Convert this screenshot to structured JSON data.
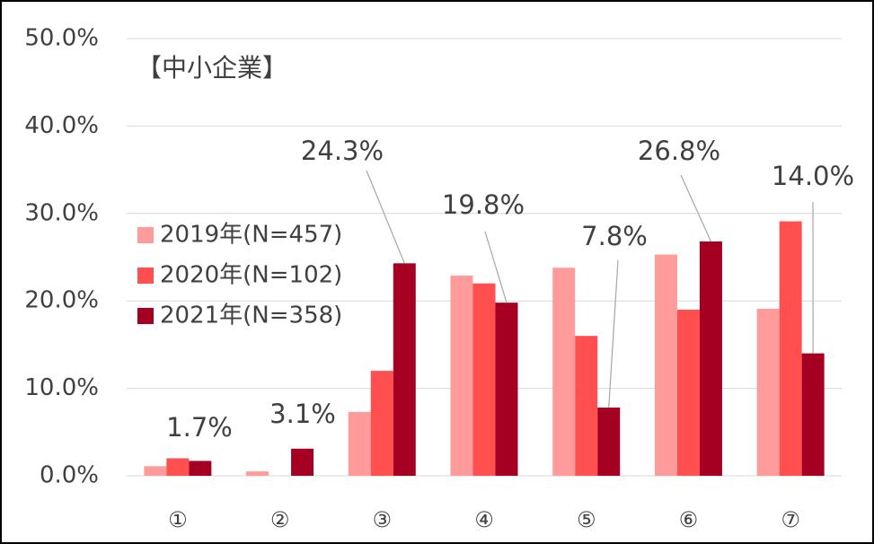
{
  "chart_data": {
    "type": "bar",
    "title": "【中小企業】",
    "categories": [
      "①",
      "②",
      "③",
      "④",
      "⑤",
      "⑥",
      "⑦"
    ],
    "series": [
      {
        "name": "2019年(N=457)",
        "color": "#ff9b9b",
        "values": [
          1.1,
          0.5,
          7.3,
          22.9,
          23.8,
          25.3,
          19.1
        ]
      },
      {
        "name": "2020年(N=102)",
        "color": "#ff4f4f",
        "values": [
          2.0,
          0,
          12.0,
          22.0,
          16.0,
          19.0,
          29.1
        ]
      },
      {
        "name": "2021年(N=358)",
        "color": "#a50021",
        "values": [
          1.7,
          3.1,
          24.3,
          19.8,
          7.8,
          26.8,
          14.0
        ],
        "value_labels": [
          "1.7%",
          "3.1%",
          "24.3%",
          "19.8%",
          "7.8%",
          "26.8%",
          "14.0%"
        ]
      }
    ],
    "ylim": [
      0,
      50
    ],
    "yticks": [
      {
        "value": 0,
        "label": "0.0%"
      },
      {
        "value": 10,
        "label": "10.0%"
      },
      {
        "value": 20,
        "label": "20.0%"
      },
      {
        "value": 30,
        "label": "30.0%"
      },
      {
        "value": 40,
        "label": "40.0%"
      },
      {
        "value": 50,
        "label": "50.0%"
      }
    ],
    "grid": true
  }
}
